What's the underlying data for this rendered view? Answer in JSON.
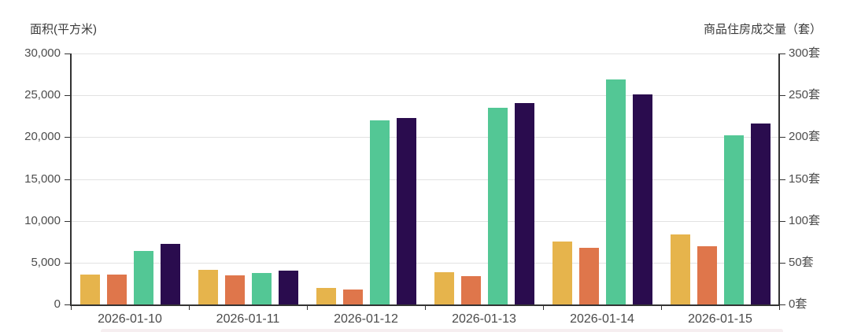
{
  "chart_data": {
    "type": "bar",
    "left_axis_title": "面积(平方米)",
    "right_axis_title": "商品住房成交量（套）",
    "categories": [
      "2026-01-10",
      "2026-01-11",
      "2026-01-12",
      "2026-01-13",
      "2026-01-14",
      "2026-01-15"
    ],
    "series": [
      {
        "name": "yellow-area-bars",
        "axis": "left",
        "color": "#e6b44c",
        "values": [
          3600,
          4100,
          2000,
          3900,
          7500,
          8400
        ]
      },
      {
        "name": "orange-area-bars",
        "axis": "left",
        "color": "#df764b",
        "values": [
          3600,
          3450,
          1800,
          3400,
          6800,
          7000
        ]
      },
      {
        "name": "green-count-bars",
        "axis": "right",
        "color": "#53c795",
        "values": [
          64,
          38,
          220,
          235,
          269,
          202
        ]
      },
      {
        "name": "purple-count-bars",
        "axis": "right",
        "color": "#2a0c4e",
        "values": [
          72,
          40,
          223,
          241,
          251,
          216
        ]
      }
    ],
    "left_axis": {
      "min": 0,
      "max": 30000,
      "tick_labels": [
        "30,000",
        "25,000",
        "20,000",
        "15,000",
        "10,000",
        "5,000",
        "0"
      ]
    },
    "right_axis": {
      "min": 0,
      "max": 300,
      "tick_labels": [
        "300套",
        "250套",
        "200套",
        "150套",
        "100套",
        "50套",
        "0套"
      ]
    },
    "grid": true,
    "legend_position": "none"
  },
  "style": {
    "grid_color": "#e2e2e2",
    "axis_color": "#333333",
    "label_color": "#4d4d4d",
    "title_color": "#3a3a3a",
    "background": "#ffffff",
    "bottom_strip_color": "#f6eef0"
  }
}
